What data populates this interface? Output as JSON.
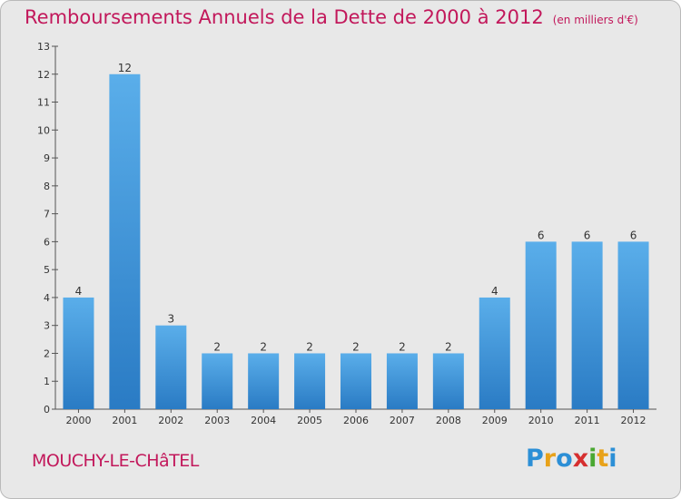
{
  "chart_data": {
    "type": "bar",
    "title": "Remboursements Annuels de la Dette de 2000 à 2012",
    "subtitle": "(en milliers d'€)",
    "categories": [
      "2000",
      "2001",
      "2002",
      "2003",
      "2004",
      "2005",
      "2006",
      "2007",
      "2008",
      "2009",
      "2010",
      "2011",
      "2012"
    ],
    "values": [
      4,
      12,
      3,
      2,
      2,
      2,
      2,
      2,
      2,
      4,
      6,
      6,
      6
    ],
    "ylim": [
      0,
      13
    ],
    "yticks": [
      "0",
      "1",
      "2",
      "3",
      "4",
      "5",
      "6",
      "7",
      "8",
      "9",
      "10",
      "11",
      "12",
      "13"
    ],
    "grid": false,
    "bar_color": "#4a9fe0",
    "bar_color_dark": "#2a7bc4"
  },
  "footer": {
    "commune": "MOUCHY-LE-CHâTEL",
    "logo_letters": [
      "P",
      "r",
      "o",
      "x",
      "i",
      "t",
      "i"
    ],
    "logo_colors": [
      "#2c8fd6",
      "#e8a21a",
      "#2c8fd6",
      "#d62f2f",
      "#4aa832",
      "#e8a21a",
      "#2c8fd6"
    ]
  }
}
